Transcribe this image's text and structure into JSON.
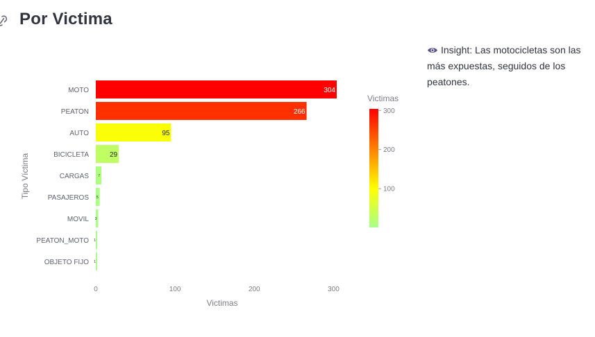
{
  "header": {
    "title": "Por Victima",
    "icon": "link-icon"
  },
  "insight": {
    "icon": "eye-icon",
    "text": "Insight: Las motocicletas son las más expuestas, seguidos de los peatones."
  },
  "chart_data": {
    "type": "bar",
    "orientation": "horizontal",
    "categories": [
      "MOTO",
      "PEATON",
      "AUTO",
      "BICICLETA",
      "CARGAS",
      "PASAJEROS",
      "MOVIL",
      "PEATON_MOTO",
      "OBJETO FIJO"
    ],
    "values": [
      304,
      266,
      95,
      29,
      7,
      5,
      3,
      1,
      1
    ],
    "data_labels": [
      "304",
      "266",
      "95",
      "29",
      "7",
      "5",
      "3",
      "1",
      "1"
    ],
    "title": "",
    "xlabel": "Victimas",
    "ylabel": "Tipo Víctima",
    "xlim": [
      0,
      304
    ],
    "xticks": [
      0,
      100,
      200,
      300
    ],
    "grid": false,
    "colorbar": {
      "title": "Victimas",
      "range": [
        1,
        304
      ],
      "ticks": [
        100,
        200,
        300
      ],
      "colors": [
        "#a8ff8a",
        "#ffff00",
        "#ff0000"
      ]
    }
  }
}
